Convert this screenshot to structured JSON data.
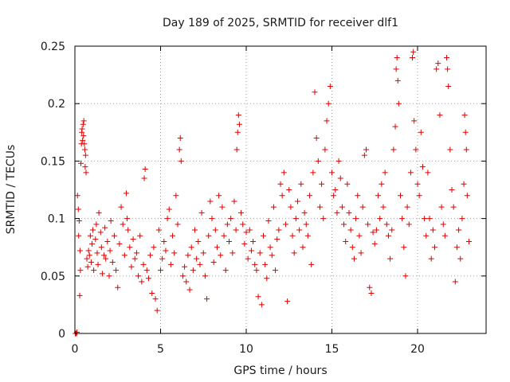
{
  "chart_data": {
    "type": "scatter",
    "title": "Day 189 of 2025, SRMTID for receiver dlf1",
    "xlabel": "GPS time / hours",
    "ylabel": "SRMTID / TECUs",
    "xlim": [
      0,
      24
    ],
    "ylim": [
      0,
      0.25
    ],
    "x_ticks": [
      0,
      5,
      10,
      15,
      20
    ],
    "y_ticks": [
      0,
      0.05,
      0.1,
      0.15,
      0.2,
      0.25
    ],
    "x_tick_labels": [
      "0",
      "5",
      "10",
      "15",
      "20"
    ],
    "y_tick_labels": [
      "0",
      "0.05",
      "0.1",
      "0.15",
      "0.2",
      "0.25"
    ],
    "grid": true,
    "marker": "plus",
    "color": "#e00000",
    "points": [
      [
        0.02,
        0.0
      ],
      [
        0.05,
        0.0
      ],
      [
        0.1,
        0.0
      ],
      [
        0.12,
        0.001
      ],
      [
        0.15,
        0.12
      ],
      [
        0.2,
        0.108
      ],
      [
        0.22,
        0.085
      ],
      [
        0.25,
        0.098
      ],
      [
        0.28,
        0.033
      ],
      [
        0.3,
        0.072
      ],
      [
        0.32,
        0.055
      ],
      [
        0.35,
        0.148
      ],
      [
        0.38,
        0.165
      ],
      [
        0.4,
        0.175
      ],
      [
        0.42,
        0.178
      ],
      [
        0.45,
        0.168
      ],
      [
        0.48,
        0.182
      ],
      [
        0.5,
        0.172
      ],
      [
        0.52,
        0.185
      ],
      [
        0.55,
        0.165
      ],
      [
        0.58,
        0.16
      ],
      [
        0.6,
        0.145
      ],
      [
        0.62,
        0.155
      ],
      [
        0.65,
        0.14
      ],
      [
        0.7,
        0.065
      ],
      [
        0.75,
        0.058
      ],
      [
        0.8,
        0.072
      ],
      [
        0.85,
        0.068
      ],
      [
        0.9,
        0.085
      ],
      [
        0.95,
        0.062
      ],
      [
        1.0,
        0.078
      ],
      [
        1.05,
        0.09
      ],
      [
        1.1,
        0.055
      ],
      [
        1.2,
        0.082
      ],
      [
        1.25,
        0.095
      ],
      [
        1.3,
        0.07
      ],
      [
        1.35,
        0.06
      ],
      [
        1.4,
        0.105
      ],
      [
        1.5,
        0.088
      ],
      [
        1.55,
        0.075
      ],
      [
        1.6,
        0.052
      ],
      [
        1.7,
        0.068
      ],
      [
        1.75,
        0.092
      ],
      [
        1.8,
        0.065
      ],
      [
        1.9,
        0.08
      ],
      [
        2.0,
        0.05
      ],
      [
        2.05,
        0.072
      ],
      [
        2.1,
        0.098
      ],
      [
        2.2,
        0.062
      ],
      [
        2.3,
        0.085
      ],
      [
        2.4,
        0.055
      ],
      [
        2.5,
        0.04
      ],
      [
        2.6,
        0.078
      ],
      [
        2.7,
        0.11
      ],
      [
        2.8,
        0.095
      ],
      [
        2.9,
        0.068
      ],
      [
        3.0,
        0.122
      ],
      [
        3.05,
        0.1
      ],
      [
        3.1,
        0.09
      ],
      [
        3.2,
        0.075
      ],
      [
        3.3,
        0.058
      ],
      [
        3.4,
        0.082
      ],
      [
        3.5,
        0.065
      ],
      [
        3.6,
        0.07
      ],
      [
        3.7,
        0.05
      ],
      [
        3.8,
        0.085
      ],
      [
        3.9,
        0.045
      ],
      [
        4.0,
        0.06
      ],
      [
        4.05,
        0.135
      ],
      [
        4.1,
        0.143
      ],
      [
        4.2,
        0.055
      ],
      [
        4.3,
        0.048
      ],
      [
        4.4,
        0.068
      ],
      [
        4.5,
        0.035
      ],
      [
        4.6,
        0.075
      ],
      [
        4.7,
        0.03
      ],
      [
        4.8,
        0.02
      ],
      [
        4.9,
        0.09
      ],
      [
        5.0,
        0.055
      ],
      [
        5.1,
        0.065
      ],
      [
        5.2,
        0.08
      ],
      [
        5.3,
        0.072
      ],
      [
        5.4,
        0.1
      ],
      [
        5.5,
        0.108
      ],
      [
        5.6,
        0.06
      ],
      [
        5.7,
        0.085
      ],
      [
        5.8,
        0.07
      ],
      [
        5.9,
        0.12
      ],
      [
        6.0,
        0.095
      ],
      [
        6.1,
        0.16
      ],
      [
        6.15,
        0.17
      ],
      [
        6.2,
        0.15
      ],
      [
        6.3,
        0.05
      ],
      [
        6.4,
        0.058
      ],
      [
        6.5,
        0.045
      ],
      [
        6.6,
        0.068
      ],
      [
        6.7,
        0.038
      ],
      [
        6.8,
        0.075
      ],
      [
        6.9,
        0.055
      ],
      [
        7.0,
        0.09
      ],
      [
        7.1,
        0.065
      ],
      [
        7.2,
        0.08
      ],
      [
        7.3,
        0.06
      ],
      [
        7.4,
        0.105
      ],
      [
        7.5,
        0.07
      ],
      [
        7.6,
        0.05
      ],
      [
        7.7,
        0.03
      ],
      [
        7.8,
        0.085
      ],
      [
        7.9,
        0.115
      ],
      [
        8.0,
        0.1
      ],
      [
        8.1,
        0.062
      ],
      [
        8.2,
        0.09
      ],
      [
        8.3,
        0.075
      ],
      [
        8.4,
        0.12
      ],
      [
        8.5,
        0.068
      ],
      [
        8.6,
        0.11
      ],
      [
        8.7,
        0.085
      ],
      [
        8.8,
        0.055
      ],
      [
        8.9,
        0.095
      ],
      [
        9.0,
        0.08
      ],
      [
        9.1,
        0.1
      ],
      [
        9.2,
        0.07
      ],
      [
        9.3,
        0.115
      ],
      [
        9.4,
        0.09
      ],
      [
        9.45,
        0.16
      ],
      [
        9.5,
        0.175
      ],
      [
        9.55,
        0.19
      ],
      [
        9.6,
        0.182
      ],
      [
        9.7,
        0.105
      ],
      [
        9.8,
        0.095
      ],
      [
        9.9,
        0.078
      ],
      [
        10.0,
        0.088
      ],
      [
        10.1,
        0.065
      ],
      [
        10.2,
        0.09
      ],
      [
        10.3,
        0.072
      ],
      [
        10.4,
        0.08
      ],
      [
        10.5,
        0.06
      ],
      [
        10.6,
        0.055
      ],
      [
        10.7,
        0.032
      ],
      [
        10.8,
        0.07
      ],
      [
        10.9,
        0.025
      ],
      [
        11.0,
        0.085
      ],
      [
        11.1,
        0.06
      ],
      [
        11.2,
        0.048
      ],
      [
        11.3,
        0.098
      ],
      [
        11.4,
        0.075
      ],
      [
        11.5,
        0.068
      ],
      [
        11.6,
        0.11
      ],
      [
        11.7,
        0.055
      ],
      [
        11.8,
        0.082
      ],
      [
        11.9,
        0.09
      ],
      [
        12.0,
        0.13
      ],
      [
        12.1,
        0.12
      ],
      [
        12.2,
        0.14
      ],
      [
        12.3,
        0.095
      ],
      [
        12.4,
        0.028
      ],
      [
        12.5,
        0.125
      ],
      [
        12.6,
        0.11
      ],
      [
        12.7,
        0.085
      ],
      [
        12.8,
        0.07
      ],
      [
        12.9,
        0.1
      ],
      [
        13.0,
        0.115
      ],
      [
        13.1,
        0.09
      ],
      [
        13.2,
        0.13
      ],
      [
        13.3,
        0.075
      ],
      [
        13.4,
        0.105
      ],
      [
        13.5,
        0.095
      ],
      [
        13.6,
        0.085
      ],
      [
        13.7,
        0.12
      ],
      [
        13.8,
        0.06
      ],
      [
        13.9,
        0.14
      ],
      [
        14.0,
        0.21
      ],
      [
        14.1,
        0.17
      ],
      [
        14.2,
        0.15
      ],
      [
        14.3,
        0.11
      ],
      [
        14.4,
        0.13
      ],
      [
        14.5,
        0.1
      ],
      [
        14.6,
        0.16
      ],
      [
        14.7,
        0.185
      ],
      [
        14.8,
        0.2
      ],
      [
        14.9,
        0.215
      ],
      [
        15.0,
        0.14
      ],
      [
        15.1,
        0.12
      ],
      [
        15.2,
        0.125
      ],
      [
        15.3,
        0.105
      ],
      [
        15.4,
        0.15
      ],
      [
        15.5,
        0.135
      ],
      [
        15.6,
        0.11
      ],
      [
        15.7,
        0.095
      ],
      [
        15.8,
        0.08
      ],
      [
        15.9,
        0.13
      ],
      [
        16.0,
        0.105
      ],
      [
        16.1,
        0.09
      ],
      [
        16.2,
        0.075
      ],
      [
        16.3,
        0.065
      ],
      [
        16.4,
        0.1
      ],
      [
        16.5,
        0.12
      ],
      [
        16.6,
        0.085
      ],
      [
        16.7,
        0.07
      ],
      [
        16.8,
        0.11
      ],
      [
        16.9,
        0.155
      ],
      [
        17.0,
        0.16
      ],
      [
        17.1,
        0.095
      ],
      [
        17.2,
        0.04
      ],
      [
        17.3,
        0.035
      ],
      [
        17.4,
        0.088
      ],
      [
        17.5,
        0.078
      ],
      [
        17.6,
        0.09
      ],
      [
        17.7,
        0.12
      ],
      [
        17.8,
        0.1
      ],
      [
        17.9,
        0.13
      ],
      [
        18.0,
        0.11
      ],
      [
        18.1,
        0.14
      ],
      [
        18.2,
        0.095
      ],
      [
        18.3,
        0.085
      ],
      [
        18.4,
        0.065
      ],
      [
        18.5,
        0.09
      ],
      [
        18.6,
        0.16
      ],
      [
        18.7,
        0.18
      ],
      [
        18.75,
        0.23
      ],
      [
        18.8,
        0.24
      ],
      [
        18.85,
        0.22
      ],
      [
        18.9,
        0.2
      ],
      [
        19.0,
        0.12
      ],
      [
        19.1,
        0.1
      ],
      [
        19.2,
        0.075
      ],
      [
        19.3,
        0.05
      ],
      [
        19.4,
        0.11
      ],
      [
        19.5,
        0.095
      ],
      [
        19.6,
        0.14
      ],
      [
        19.7,
        0.24
      ],
      [
        19.75,
        0.245
      ],
      [
        19.8,
        0.185
      ],
      [
        19.9,
        0.16
      ],
      [
        20.0,
        0.13
      ],
      [
        20.1,
        0.12
      ],
      [
        20.2,
        0.175
      ],
      [
        20.3,
        0.145
      ],
      [
        20.4,
        0.1
      ],
      [
        20.5,
        0.085
      ],
      [
        20.6,
        0.14
      ],
      [
        20.7,
        0.1
      ],
      [
        20.8,
        0.065
      ],
      [
        20.9,
        0.09
      ],
      [
        21.0,
        0.075
      ],
      [
        21.1,
        0.23
      ],
      [
        21.2,
        0.235
      ],
      [
        21.3,
        0.19
      ],
      [
        21.4,
        0.11
      ],
      [
        21.5,
        0.095
      ],
      [
        21.6,
        0.085
      ],
      [
        21.7,
        0.24
      ],
      [
        21.75,
        0.23
      ],
      [
        21.8,
        0.215
      ],
      [
        21.9,
        0.16
      ],
      [
        22.0,
        0.125
      ],
      [
        22.1,
        0.11
      ],
      [
        22.2,
        0.045
      ],
      [
        22.3,
        0.075
      ],
      [
        22.4,
        0.09
      ],
      [
        22.5,
        0.065
      ],
      [
        22.6,
        0.1
      ],
      [
        22.7,
        0.13
      ],
      [
        22.75,
        0.19
      ],
      [
        22.8,
        0.175
      ],
      [
        22.85,
        0.16
      ],
      [
        22.9,
        0.12
      ],
      [
        23.0,
        0.08
      ]
    ]
  }
}
